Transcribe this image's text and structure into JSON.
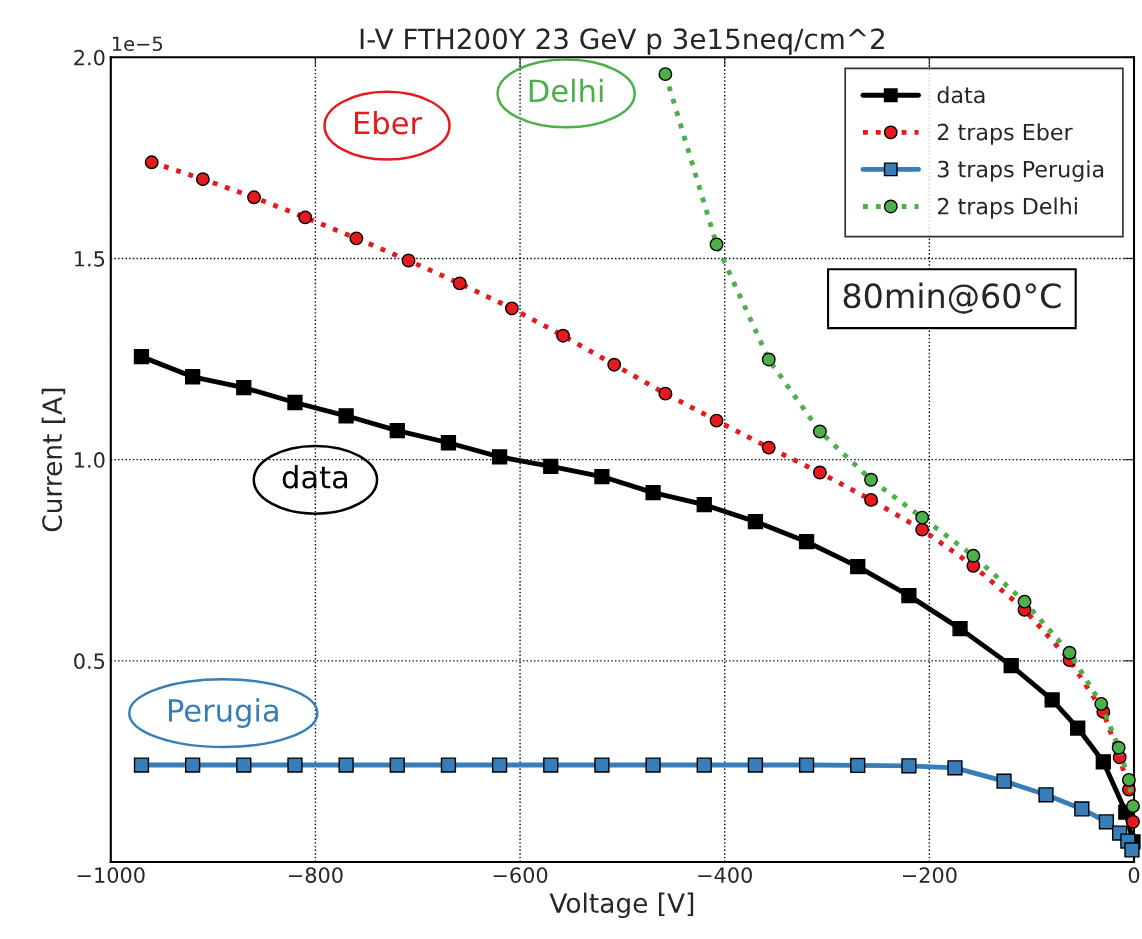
{
  "chart_data": {
    "type": "line",
    "title": "I-V FTH200Y 23 GeV p 3e15neq/cm^2",
    "xlabel": "Voltage [V]",
    "ylabel": "Current [A]",
    "series": [
      {
        "name": "data",
        "color": "#000000",
        "marker": "square",
        "line_style": "solid",
        "x": [
          -970,
          -920,
          -870,
          -820,
          -770,
          -720,
          -670,
          -620,
          -570,
          -520,
          -470,
          -420,
          -370,
          -320,
          -270,
          -220,
          -170,
          -120,
          -80,
          -55,
          -30,
          -8,
          -1
        ],
        "values": [
          1.256,
          1.206,
          1.179,
          1.142,
          1.109,
          1.072,
          1.042,
          1.007,
          0.983,
          0.958,
          0.918,
          0.888,
          0.846,
          0.796,
          0.734,
          0.662,
          0.58,
          0.488,
          0.403,
          0.333,
          0.249,
          0.124,
          0.05
        ]
      },
      {
        "name": "2 traps Eber",
        "color": "#e41a1c",
        "marker": "circle",
        "line_style": "dotted",
        "x": [
          -960,
          -910,
          -860,
          -810,
          -760,
          -709,
          -659,
          -608,
          -558,
          -508,
          -458,
          -408,
          -357,
          -307,
          -257,
          -207,
          -157,
          -107,
          -63,
          -30,
          -14,
          -5,
          -1
        ],
        "values": [
          1.739,
          1.697,
          1.652,
          1.602,
          1.55,
          1.495,
          1.438,
          1.376,
          1.308,
          1.236,
          1.164,
          1.097,
          1.03,
          0.968,
          0.9,
          0.826,
          0.736,
          0.627,
          0.502,
          0.373,
          0.26,
          0.18,
          0.1
        ]
      },
      {
        "name": "3 traps Perugia",
        "color": "#377eb8",
        "marker": "square",
        "line_style": "solid",
        "x": [
          -970,
          -920,
          -870,
          -820,
          -770,
          -720,
          -670,
          -620,
          -570,
          -520,
          -470,
          -420,
          -370,
          -320,
          -270,
          -220,
          -175,
          -127,
          -86,
          -51,
          -27,
          -14,
          -6,
          -2
        ],
        "values": [
          0.241,
          0.241,
          0.241,
          0.241,
          0.241,
          0.241,
          0.241,
          0.241,
          0.241,
          0.241,
          0.241,
          0.241,
          0.241,
          0.241,
          0.24,
          0.239,
          0.234,
          0.201,
          0.167,
          0.132,
          0.1,
          0.072,
          0.052,
          0.03
        ]
      },
      {
        "name": "2 traps Delhi",
        "color": "#4daf4a",
        "marker": "circle",
        "line_style": "dotted",
        "x": [
          -458,
          -408,
          -357,
          -307,
          -257,
          -207,
          -157,
          -107,
          -63,
          -32,
          -15,
          -5,
          -1
        ],
        "values": [
          1.958,
          1.535,
          1.249,
          1.07,
          0.95,
          0.856,
          0.761,
          0.647,
          0.52,
          0.393,
          0.284,
          0.204,
          0.139
        ]
      }
    ],
    "xlim": [
      -1000,
      0
    ],
    "xticks": [
      {
        "value": -1000,
        "label": "−1000"
      },
      {
        "value": -800,
        "label": "−800"
      },
      {
        "value": -600,
        "label": "−600"
      },
      {
        "value": -400,
        "label": "−400"
      },
      {
        "value": -200,
        "label": "−200"
      },
      0
    ],
    "ylim": [
      0,
      2.0
    ],
    "yticks": [
      0.5,
      {
        "value": 1,
        "label": "1.0"
      },
      1.5,
      {
        "value": 2,
        "label": "2.0"
      }
    ],
    "grid": true,
    "legend": "top right",
    "annotations": [
      "data",
      "Eber",
      "Perugia",
      "Delhi",
      "80min@60°C",
      "1e−5"
    ]
  }
}
